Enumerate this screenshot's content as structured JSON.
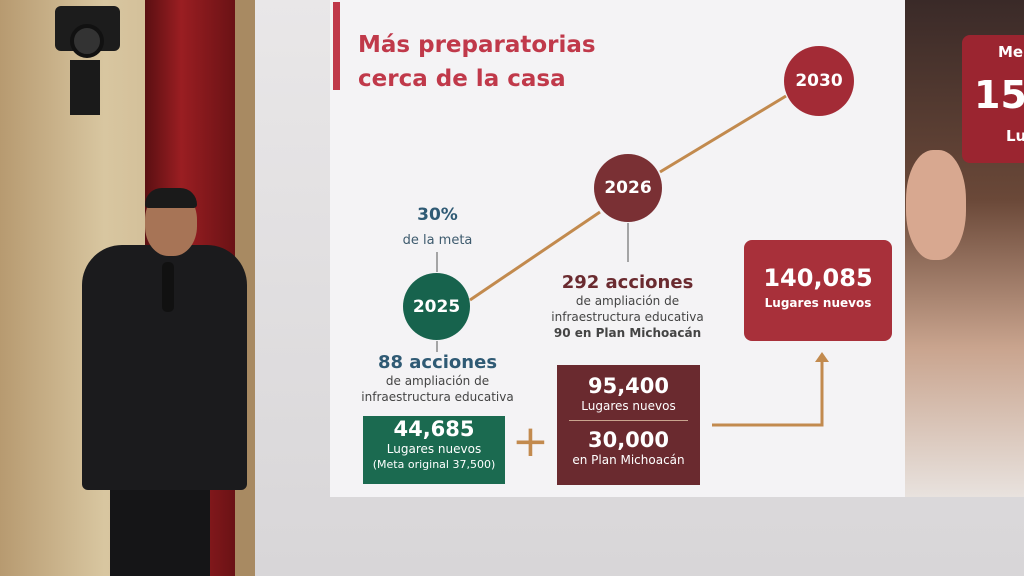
{
  "slide": {
    "title_line1": "Más preparatorias",
    "title_line2": "cerca de la casa",
    "years": [
      "2025",
      "2026",
      "2030"
    ],
    "progress": {
      "percent": "30%",
      "label": "de la meta"
    },
    "y2025": {
      "acciones": "88 acciones",
      "desc1": "de ampliación de",
      "desc2": "infraestructura educativa",
      "places": "44,685",
      "places_label": "Lugares nuevos",
      "note": "(Meta original 37,500)"
    },
    "y2026": {
      "acciones": "292 acciones",
      "desc1": "de ampliación de",
      "desc2": "infraestructura educativa",
      "plan": "90 en Plan Michoacán",
      "places": "95,400",
      "places_label": "Lugares nuevos",
      "plan_places": "30,000",
      "plan_label": "en Plan Michoacán"
    },
    "plus": "+",
    "y2030": {
      "places": "140,085",
      "places_label": "Lugares nuevos"
    }
  },
  "side_panel": {
    "line1": "Me",
    "line2": "15",
    "line3": "Lu"
  },
  "colors": {
    "red": "#a8303a",
    "green": "#1b6a50",
    "maroon": "#6a2a2f",
    "gold": "#c28a4e"
  }
}
